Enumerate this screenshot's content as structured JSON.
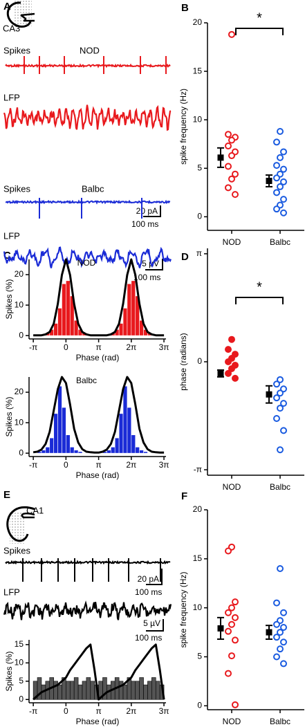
{
  "panel_labels": [
    "A",
    "B",
    "C",
    "D",
    "E",
    "F"
  ],
  "panel_a": {
    "region": "CA3",
    "recordings": [
      {
        "group": "NOD",
        "spikes": "Spikes",
        "lfp": "LFP",
        "color": "#e8191d"
      },
      {
        "group": "Balbc",
        "spikes": "Spikes",
        "lfp": "LFP",
        "color": "#1a2bd6"
      }
    ],
    "scale_bars": [
      {
        "amplitude": "20 pA",
        "time": "100 ms"
      },
      {
        "amplitude": "5 µV",
        "time": "100 ms"
      }
    ]
  },
  "panel_e": {
    "region": "CA1",
    "spikes": "Spikes",
    "lfp": "LFP",
    "color": "#000000",
    "scale_bars": [
      {
        "amplitude": "20 pA",
        "time": "100 ms"
      },
      {
        "amplitude": "5 µV",
        "time": "100 ms"
      }
    ]
  },
  "chart_data": [
    {
      "type": "strip",
      "ylabel": "spike frequency (Hz)",
      "categories": [
        "NOD",
        "Balbc"
      ],
      "series": [
        {
          "color": "#e8191d",
          "filled": false,
          "values": [
            18.8,
            8.5,
            8.2,
            7.9,
            7.3,
            6.7,
            6.3,
            5.2,
            4.4,
            3.9,
            3.0,
            2.3
          ]
        },
        {
          "color": "#1a5be0",
          "filled": false,
          "values": [
            8.8,
            7.7,
            6.7,
            6.1,
            5.3,
            4.9,
            4.4,
            4.0,
            3.6,
            3.1,
            2.5,
            1.8,
            1.2,
            0.8,
            0.4
          ]
        }
      ],
      "mean": [
        6.1,
        3.7
      ],
      "error": [
        1.0,
        0.6
      ],
      "ylim": [
        -1.4,
        20
      ],
      "yticks": [
        0,
        5,
        10,
        15,
        20
      ],
      "significance": "*"
    },
    {
      "type": "histogram",
      "title": "NOD",
      "xlabel": "Phase (rad)",
      "ylabel": "Spikes (%)",
      "bins": [
        -3.142,
        -2.749,
        -2.356,
        -1.963,
        -1.571,
        -1.178,
        -0.785,
        -0.393,
        0,
        0.393,
        0.785,
        1.178,
        1.571,
        1.963,
        2.356,
        2.749,
        3.142,
        3.534,
        3.927,
        4.32,
        4.712,
        5.105,
        5.498,
        5.89,
        6.283,
        6.676,
        7.069,
        7.461,
        7.854,
        8.247,
        8.639,
        9.032,
        9.425
      ],
      "values": [
        0,
        0,
        0.5,
        1,
        2,
        4,
        9,
        17,
        18,
        13,
        5,
        2,
        1,
        0.5,
        0,
        0,
        0,
        0,
        0.5,
        1,
        2,
        4,
        9,
        17,
        18,
        13,
        5,
        2,
        1,
        0.5,
        0,
        0
      ],
      "color": "#e8191d",
      "edgecolor": "#ffffff",
      "curve": {
        "color": "#000000",
        "x": [
          -3.142,
          -2.749,
          -2.356,
          -1.963,
          -1.571,
          -1.178,
          -0.785,
          -0.393,
          0,
          0.393,
          0.785,
          1.178,
          1.571,
          1.963,
          2.356,
          2.749,
          3.142,
          3.534,
          3.927,
          4.32,
          4.712,
          5.105,
          5.498,
          5.89,
          6.283,
          6.676,
          7.069,
          7.461,
          7.854,
          8.247,
          8.639,
          9.032,
          9.425
        ],
        "values": [
          0.1,
          0.1,
          0.1,
          0.4,
          1.2,
          3.9,
          10.4,
          19.9,
          25,
          19.9,
          10.4,
          3.9,
          1.2,
          0.4,
          0.1,
          0.1,
          0.1,
          0.1,
          0.1,
          0.4,
          1.2,
          3.9,
          10.4,
          19.9,
          25,
          19.9,
          10.4,
          3.9,
          1.2,
          0.4,
          0.1,
          0.1,
          0.1
        ]
      },
      "xlim": [
        -3.55,
        9.62
      ],
      "xticks": [
        {
          "value": -3.1416,
          "label": "-π"
        },
        0,
        {
          "value": 3.1416,
          "label": "π"
        },
        {
          "value": 6.2832,
          "label": "2π"
        },
        {
          "value": 9.4248,
          "label": "3π"
        }
      ],
      "ylim": [
        -1.1,
        25
      ],
      "yticks": [
        0,
        10,
        20
      ]
    },
    {
      "type": "histogram",
      "title": "Balbc",
      "xlabel": "Phase (rad)",
      "ylabel": "Spikes (%)",
      "bins": [
        -3.142,
        -2.749,
        -2.356,
        -1.963,
        -1.571,
        -1.178,
        -0.785,
        -0.393,
        0,
        0.393,
        0.785,
        1.178,
        1.571,
        1.963,
        2.356,
        2.749,
        3.142,
        3.534,
        3.927,
        4.32,
        4.712,
        5.105,
        5.498,
        5.89,
        6.283,
        6.676,
        7.069,
        7.461,
        7.854,
        8.247,
        8.639,
        9.032,
        9.425
      ],
      "values": [
        0,
        0.5,
        1,
        2,
        5,
        13,
        22,
        15,
        6,
        2,
        1,
        0.5,
        0,
        0,
        0,
        0,
        0,
        0.5,
        1,
        2,
        5,
        13,
        22,
        15,
        6,
        2,
        1,
        0.5,
        0,
        0,
        0,
        0
      ],
      "color": "#1a2bd6",
      "edgecolor": "#ffffff",
      "curve": {
        "color": "#000000",
        "x": [
          -3.142,
          -2.749,
          -2.356,
          -1.963,
          -1.571,
          -1.178,
          -0.785,
          -0.393,
          0,
          0.393,
          0.785,
          1.178,
          1.571,
          1.963,
          2.356,
          2.749,
          3.142,
          3.534,
          3.927,
          4.32,
          4.712,
          5.105,
          5.498,
          5.89,
          6.283,
          6.676,
          7.069,
          7.461,
          7.854,
          8.247,
          8.639,
          9.032,
          9.425
        ],
        "values": [
          0.3,
          0.5,
          1.2,
          3,
          7,
          14,
          21,
          25,
          23,
          16,
          8,
          3.5,
          1.3,
          0.5,
          0.3,
          0.2,
          0.2,
          0.5,
          1.2,
          3,
          7,
          14,
          21,
          25,
          23,
          16,
          8,
          3.5,
          1.3,
          0.5,
          0.3,
          0.2,
          0.2
        ]
      },
      "xlim": [
        -3.55,
        9.62
      ],
      "xticks": [
        {
          "value": -3.1416,
          "label": "-π"
        },
        0,
        {
          "value": 3.1416,
          "label": "π"
        },
        {
          "value": 6.2832,
          "label": "2π"
        },
        {
          "value": 9.4248,
          "label": "3π"
        }
      ],
      "ylim": [
        -1.1,
        25
      ],
      "yticks": [
        0,
        10,
        20
      ]
    },
    {
      "type": "strip",
      "ylabel": "phase (radians)",
      "categories": [
        "NOD",
        "Balbc"
      ],
      "series": [
        {
          "color": "#e8191d",
          "filled": true,
          "values": [
            0.65,
            0.36,
            0.22,
            0.1,
            0,
            -0.1,
            -0.2,
            -0.34,
            -0.48
          ]
        },
        {
          "color": "#1a5be0",
          "filled": false,
          "values": [
            -0.52,
            -0.65,
            -0.79,
            -0.91,
            -1.05,
            -1.21,
            -1.35,
            -1.65,
            -2.0,
            -2.56
          ]
        }
      ],
      "mean": [
        -0.34,
        -0.95
      ],
      "error": [
        0.1,
        0.25
      ],
      "ylim": [
        -3.3,
        3.3
      ],
      "yticks": [
        {
          "value": -3.1416,
          "label": "-π"
        },
        0,
        {
          "value": 3.1416,
          "label": "π"
        }
      ],
      "significance": "*"
    },
    {
      "type": "histogram",
      "xlabel": "Phase (rad)",
      "ylabel": "Spikes (%)",
      "bins": [
        -3.142,
        -2.749,
        -2.356,
        -1.963,
        -1.571,
        -1.178,
        -0.785,
        -0.393,
        0,
        0.393,
        0.785,
        1.178,
        1.571,
        1.963,
        2.356,
        2.749,
        3.142,
        3.534,
        3.927,
        4.32,
        4.712,
        5.105,
        5.498,
        5.89,
        6.283,
        6.676,
        7.069,
        7.461,
        7.854,
        8.247,
        8.639,
        9.032,
        9.425
      ],
      "values": [
        5,
        6,
        4,
        5,
        6,
        5,
        4,
        6,
        5,
        5,
        6,
        4,
        5,
        6,
        5,
        4,
        5,
        6,
        4,
        5,
        6,
        5,
        4,
        6,
        5,
        5,
        6,
        4,
        5,
        6,
        5,
        4
      ],
      "color": "#555555",
      "edgecolor": "#000000",
      "curve": {
        "color": "#000000",
        "x": [
          -3.142,
          -2.749,
          -2.356,
          -1.963,
          -1.571,
          -1.178,
          -0.785,
          -0.393,
          0,
          0.393,
          0.785,
          1.178,
          1.571,
          1.963,
          2.356,
          2.749,
          3.142,
          3.534,
          3.927,
          4.32,
          4.712,
          5.105,
          5.498,
          5.89,
          6.283,
          6.676,
          7.069,
          7.461,
          7.854,
          8.247,
          8.639,
          9.032,
          9.425
        ],
        "values": [
          0,
          1,
          2,
          2.5,
          3,
          3.5,
          4,
          5,
          6,
          8,
          9.5,
          11,
          12.5,
          14,
          15,
          8,
          0,
          1,
          2,
          2.5,
          3,
          3.5,
          4,
          5,
          6,
          8,
          9.5,
          11,
          12.5,
          14,
          15,
          8,
          0
        ]
      },
      "xlim": [
        -3.55,
        9.62
      ],
      "xticks": [
        {
          "value": -3.1416,
          "label": "-π"
        },
        0,
        {
          "value": 3.1416,
          "label": "π"
        },
        {
          "value": 6.2832,
          "label": "2π"
        },
        {
          "value": 9.4248,
          "label": "3π"
        }
      ],
      "ylim": [
        -0.9,
        16.3
      ],
      "yticks": [
        0,
        5,
        10,
        15
      ]
    },
    {
      "type": "strip",
      "ylabel": "spike frequency (Hz)",
      "categories": [
        "NOD",
        "Balbc"
      ],
      "series": [
        {
          "color": "#e8191d",
          "filled": false,
          "values": [
            16.2,
            15.8,
            10.6,
            10.0,
            9.5,
            9.0,
            8.3,
            7.6,
            6.7,
            5.1,
            3.3,
            0.1
          ]
        },
        {
          "color": "#1a5be0",
          "filled": false,
          "values": [
            14.0,
            10.5,
            9.5,
            8.7,
            8.3,
            8.0,
            7.5,
            7.0,
            6.5,
            5.8,
            5.0,
            4.3
          ]
        }
      ],
      "mean": [
        7.9,
        7.5
      ],
      "error": [
        1.1,
        0.7
      ],
      "ylim": [
        -0.4,
        20
      ],
      "yticks": [
        0,
        5,
        10,
        15,
        20
      ]
    }
  ]
}
